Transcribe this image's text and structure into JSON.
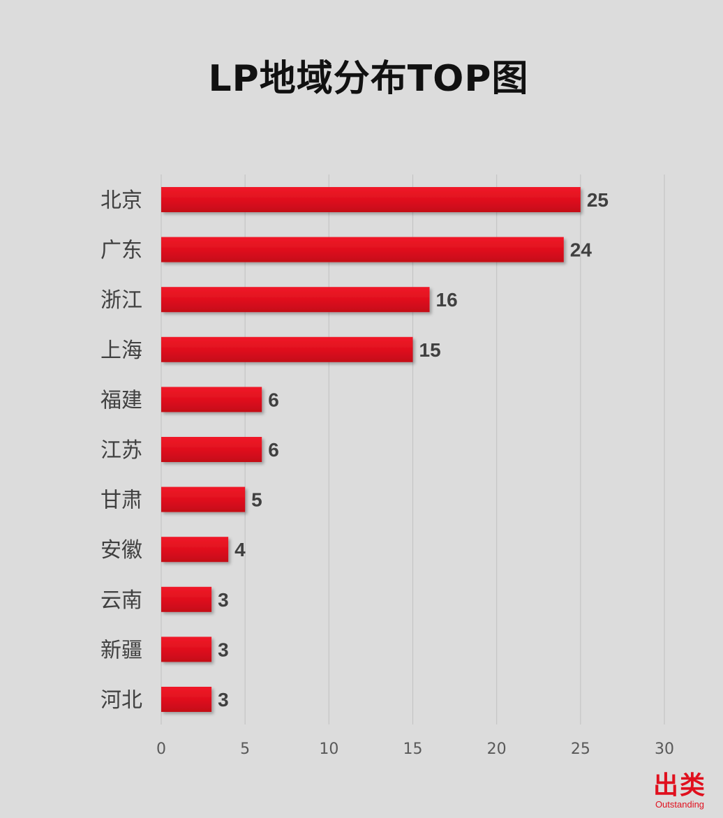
{
  "chart_data": {
    "type": "bar",
    "orientation": "horizontal",
    "title": "LP地域分布TOP图",
    "categories": [
      "北京",
      "广东",
      "浙江",
      "上海",
      "福建",
      "江苏",
      "甘肃",
      "安徽",
      "云南",
      "新疆",
      "河北"
    ],
    "values": [
      25,
      24,
      16,
      15,
      6,
      6,
      5,
      4,
      3,
      3,
      3
    ],
    "xlim": [
      0,
      30
    ],
    "xticks": [
      0,
      5,
      10,
      15,
      20,
      25,
      30
    ],
    "grid": "vertical",
    "legend": "none",
    "bar_color": "#e0101e",
    "data_labels": true
  },
  "logo": {
    "mark": "出类",
    "subtitle": "Outstanding"
  }
}
